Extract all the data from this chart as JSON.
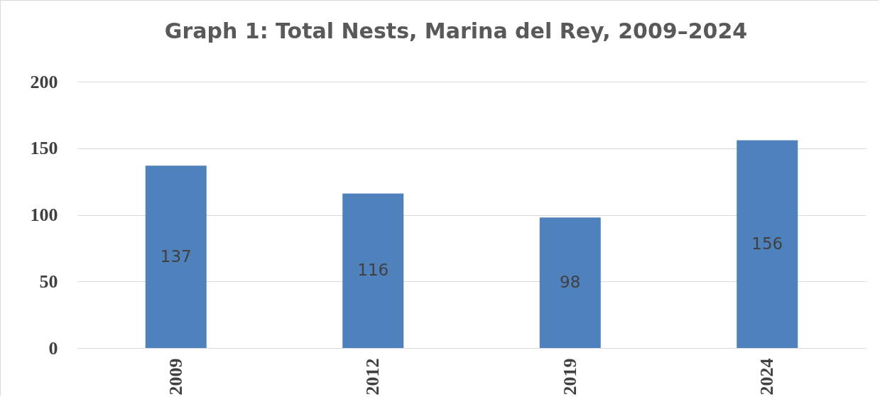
{
  "chart_data": {
    "type": "bar",
    "title": "Graph 1: Total Nests, Marina del Rey, 2009–2024",
    "categories": [
      "2009",
      "2012",
      "2019",
      "2024"
    ],
    "values": [
      137,
      116,
      98,
      156
    ],
    "color": "#4f81bd",
    "ylim": [
      0,
      200
    ],
    "yticks": [
      0,
      50,
      100,
      150,
      200
    ],
    "grid": "y",
    "data_labels": true
  }
}
